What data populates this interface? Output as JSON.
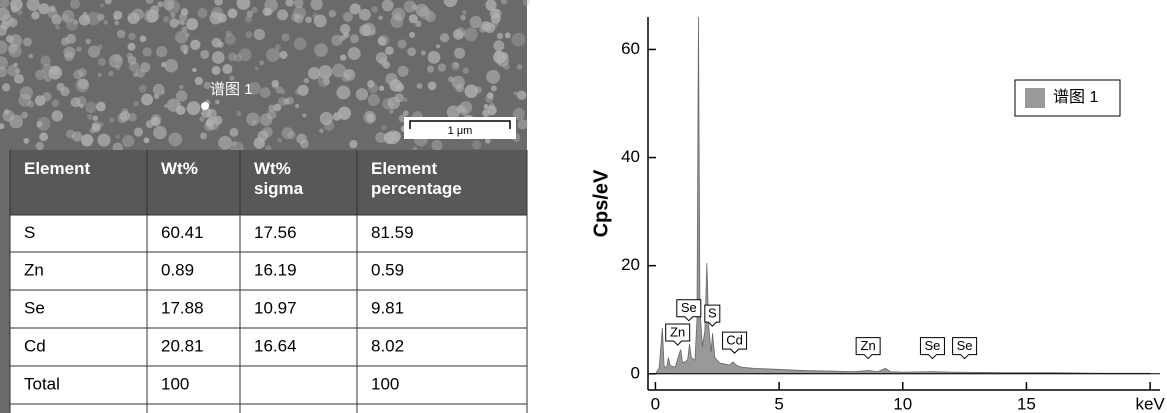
{
  "image": {
    "spot_label": "谱图 1",
    "scale_bar": "1 μm"
  },
  "table": {
    "header": [
      "Element",
      "Wt%",
      "Wt%\nsigma",
      "Element\npercentage"
    ],
    "rows": [
      [
        "S",
        "60.41",
        "17.56",
        "81.59"
      ],
      [
        "Zn",
        "0.89",
        "16.19",
        "0.59"
      ],
      [
        "Se",
        "17.88",
        "10.97",
        "9.81"
      ],
      [
        "Cd",
        "20.81",
        "16.64",
        "8.02"
      ],
      [
        "Total",
        "100",
        null,
        "100"
      ]
    ]
  },
  "chart_data": {
    "type": "area",
    "y_label": "Cps/eV",
    "xlim": [
      -0.3,
      20.4
    ],
    "ylim": [
      -3,
      66
    ],
    "xticks": [
      0,
      5,
      10,
      15,
      {
        "value": 20,
        "label": "keV"
      }
    ],
    "yticks": [
      0,
      20,
      40,
      60
    ],
    "legend": "top-right",
    "series": [
      {
        "name": "谱图 1",
        "color": "#999999",
        "x": [
          0,
          0.15,
          0.28,
          0.35,
          0.45,
          0.52,
          0.6,
          0.8,
          0.95,
          1.02,
          1.1,
          1.3,
          1.38,
          1.45,
          1.6,
          1.68,
          1.74,
          1.8,
          1.9,
          2.0,
          2.08,
          2.15,
          2.25,
          2.31,
          2.4,
          2.6,
          2.8,
          3.0,
          3.13,
          3.3,
          3.5,
          4,
          5,
          6,
          7,
          8,
          8.6,
          9,
          9.3,
          9.5,
          10,
          11.2,
          12,
          14,
          16,
          18,
          20
        ],
        "values": [
          0,
          1,
          8.5,
          1.5,
          1,
          3,
          1.5,
          1.2,
          3.5,
          4.5,
          2,
          2.5,
          5.5,
          3,
          2.5,
          10,
          66,
          12,
          5,
          8,
          20.5,
          9,
          4,
          7.5,
          3,
          2,
          1.8,
          1.6,
          2.2,
          1.5,
          1.2,
          1,
          0.8,
          0.6,
          0.5,
          0.4,
          0.6,
          0.4,
          1,
          0.4,
          0.3,
          0.4,
          0.3,
          0.2,
          0.2,
          0.1,
          0.1
        ]
      }
    ],
    "annotations": [
      {
        "text": "Se",
        "x": 1.35,
        "y": 10
      },
      {
        "text": "S",
        "x": 2.3,
        "y": 9
      },
      {
        "text": "Zn",
        "x": 0.9,
        "y": 5.5
      },
      {
        "text": "Cd",
        "x": 3.2,
        "y": 4
      },
      {
        "text": "Zn",
        "x": 8.6,
        "y": 3
      },
      {
        "text": "Se",
        "x": 11.2,
        "y": 3
      },
      {
        "text": "Se",
        "x": 12.5,
        "y": 3
      }
    ]
  }
}
